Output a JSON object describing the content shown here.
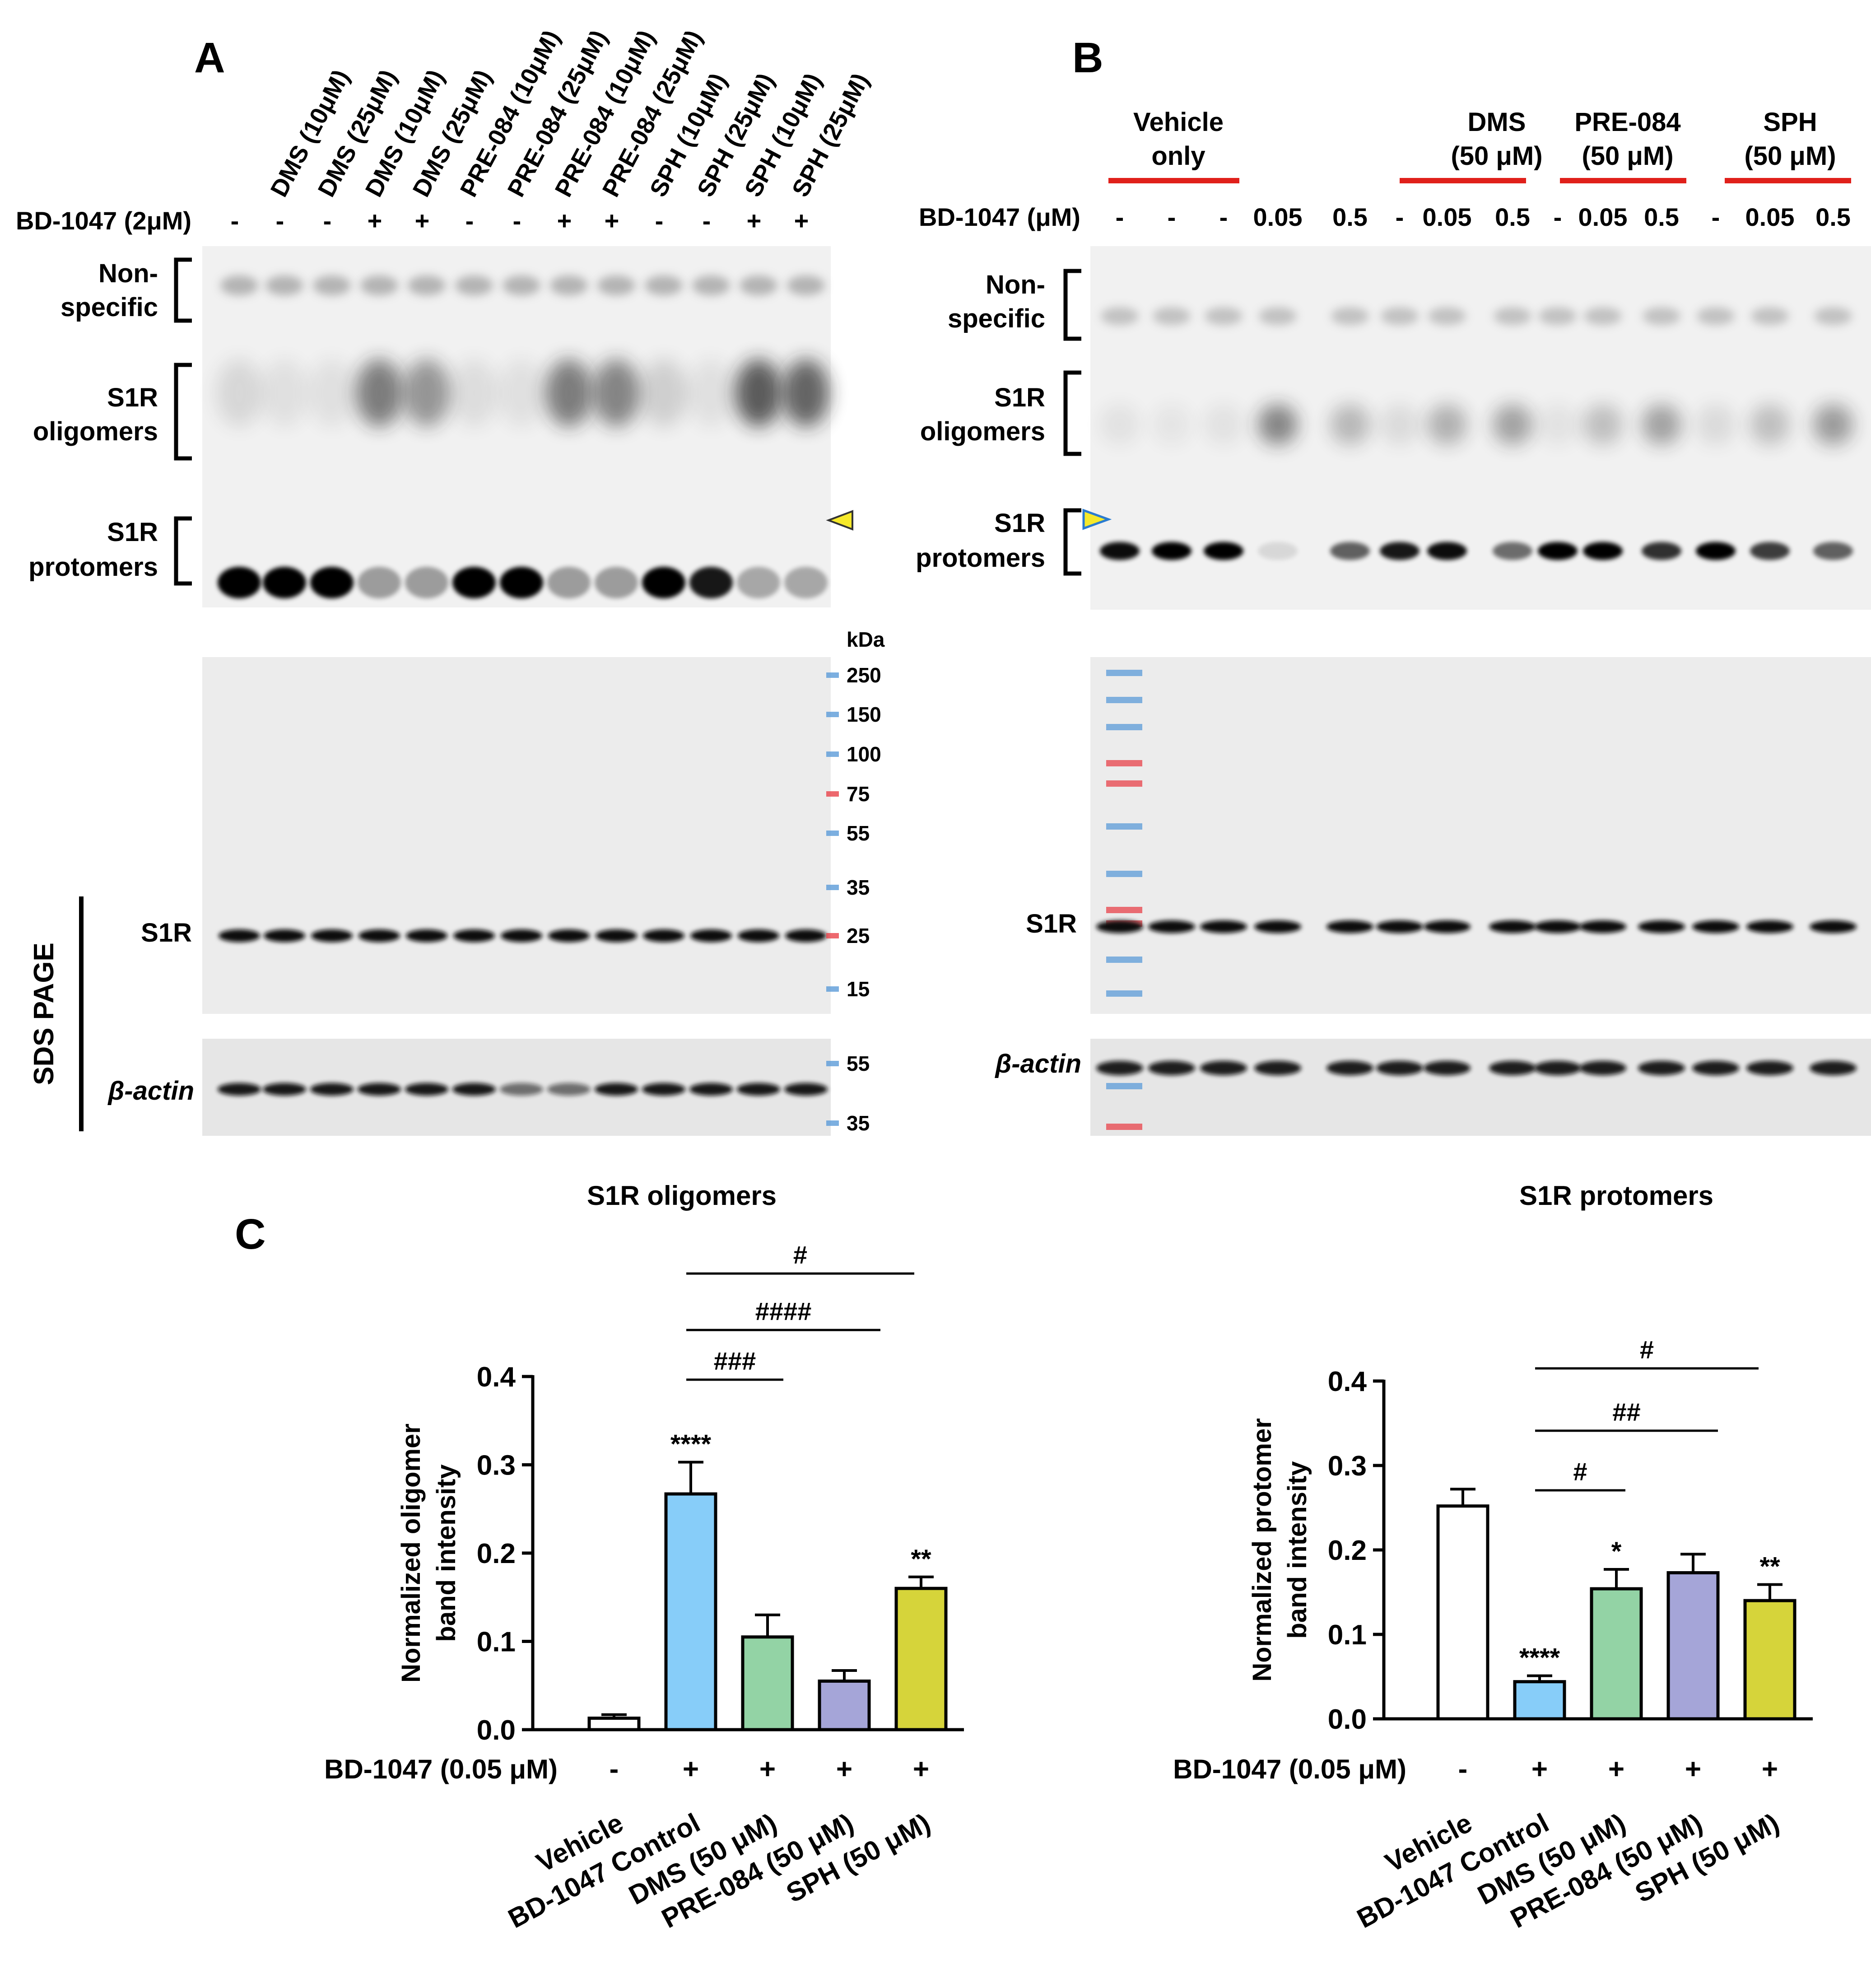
{
  "panel_a": {
    "letter": "A",
    "lane_labels": [
      "DMS (10μM)",
      "DMS (25μM)",
      "DMS (10μM)",
      "DMS (25μM)",
      "PRE-084 (10μM)",
      "PRE-084 (25μM)",
      "PRE-084 (10μM)",
      "PRE-084 (25μM)",
      "SPH (10μM)",
      "SPH (25μM)",
      "SPH (10μM)",
      "SPH (25μM)"
    ],
    "bd_label": "BD-1047 (2μM)",
    "bd_signs": [
      "-",
      "-",
      "-",
      "+",
      "+",
      "-",
      "-",
      "+",
      "+",
      "-",
      "-",
      "+",
      "+"
    ],
    "blot_labels": {
      "nonspecific_1": "Non-",
      "nonspecific_2": "specific",
      "oligomers_1": "S1R",
      "oligomers_2": "oligomers",
      "protomers_1": "S1R",
      "protomers_2": "protomers"
    },
    "sds_page": "SDS PAGE",
    "s1r": "S1R",
    "actin": "β-actin",
    "kda": "kDa",
    "ladder": [
      "250",
      "150",
      "100",
      "75",
      "55",
      "35",
      "25",
      "15"
    ],
    "actin_ladder": [
      "55",
      "35"
    ]
  },
  "panel_b": {
    "letter": "B",
    "groups": [
      {
        "line1": "Vehicle",
        "line2": "only"
      },
      {
        "line1": "DMS",
        "line2": "(50 μM)"
      },
      {
        "line1": "PRE-084",
        "line2": "(50 μM)"
      },
      {
        "line1": "SPH",
        "line2": "(50 μM)"
      }
    ],
    "bd_label": "BD-1047 (μM)",
    "bd_values": [
      "-",
      "-",
      "-",
      "0.05",
      "0.5",
      "-",
      "0.05",
      "0.5",
      "-",
      "0.05",
      "0.5",
      "-",
      "0.05",
      "0.5"
    ],
    "blot_labels": {
      "nonspecific_1": "Non-",
      "nonspecific_2": "specific",
      "oligomers_1": "S1R",
      "oligomers_2": "oligomers",
      "protomers_1": "S1R",
      "protomers_2": "protomers"
    },
    "s1r": "S1R",
    "actin": "β-actin"
  },
  "panel_c": {
    "letter": "C"
  },
  "colors": {
    "vehicle": "#ffffff",
    "bd_control": "#87cdf9",
    "dms": "#93d3a5",
    "pre084": "#a5a5d8",
    "sph": "#d6d43a",
    "red_bar": "#e0201b",
    "marker_red": "#e8424a",
    "marker_blue": "#5b9bd8"
  },
  "chart_data": [
    {
      "type": "bar",
      "title": "S1R oligomers",
      "ylabel": "Normalized oligomer band intensity",
      "ylabel_lines": [
        "Normalized oligomer",
        "band intensity"
      ],
      "ylim": [
        0,
        0.4
      ],
      "yticks": [
        "0.0",
        "0.1",
        "0.2",
        "0.3",
        "0.4"
      ],
      "categories": [
        "Vehicle",
        "BD-1047 Control",
        "DMS (50 μM)",
        "PRE-084 (50 μM)",
        "SPH (50 μM)"
      ],
      "values": [
        0.013,
        0.267,
        0.105,
        0.055,
        0.16
      ],
      "errors": [
        0.004,
        0.036,
        0.025,
        0.012,
        0.013
      ],
      "significance": [
        "",
        "****",
        "",
        "",
        "**"
      ],
      "treatment_label": "BD-1047 (0.05 μM)",
      "treatment_signs": [
        "-",
        "+",
        "+",
        "+",
        "+"
      ],
      "comparisons": [
        {
          "from": 1,
          "to": 2,
          "label": "###"
        },
        {
          "from": 1,
          "to": 3,
          "label": "####"
        },
        {
          "from": 1,
          "to": 4,
          "label": "#"
        }
      ]
    },
    {
      "type": "bar",
      "title": "S1R protomers",
      "ylabel": "Normalized protomer band intensity",
      "ylabel_lines": [
        "Normalized protomer",
        "band intensity"
      ],
      "ylim": [
        0,
        0.4
      ],
      "yticks": [
        "0.0",
        "0.1",
        "0.2",
        "0.3",
        "0.4"
      ],
      "categories": [
        "Vehicle",
        "BD-1047 Control",
        "DMS (50 μM)",
        "PRE-084 (50 μM)",
        "SPH (50 μM)"
      ],
      "values": [
        0.252,
        0.044,
        0.154,
        0.173,
        0.14
      ],
      "errors": [
        0.02,
        0.007,
        0.023,
        0.022,
        0.019
      ],
      "significance": [
        "",
        "****",
        "*",
        "",
        "**"
      ],
      "treatment_label": "BD-1047 (0.05 μM)",
      "treatment_signs": [
        "-",
        "+",
        "+",
        "+",
        "+"
      ],
      "comparisons": [
        {
          "from": 1,
          "to": 2,
          "label": "#"
        },
        {
          "from": 1,
          "to": 3,
          "label": "##"
        },
        {
          "from": 1,
          "to": 4,
          "label": "#"
        }
      ]
    }
  ]
}
